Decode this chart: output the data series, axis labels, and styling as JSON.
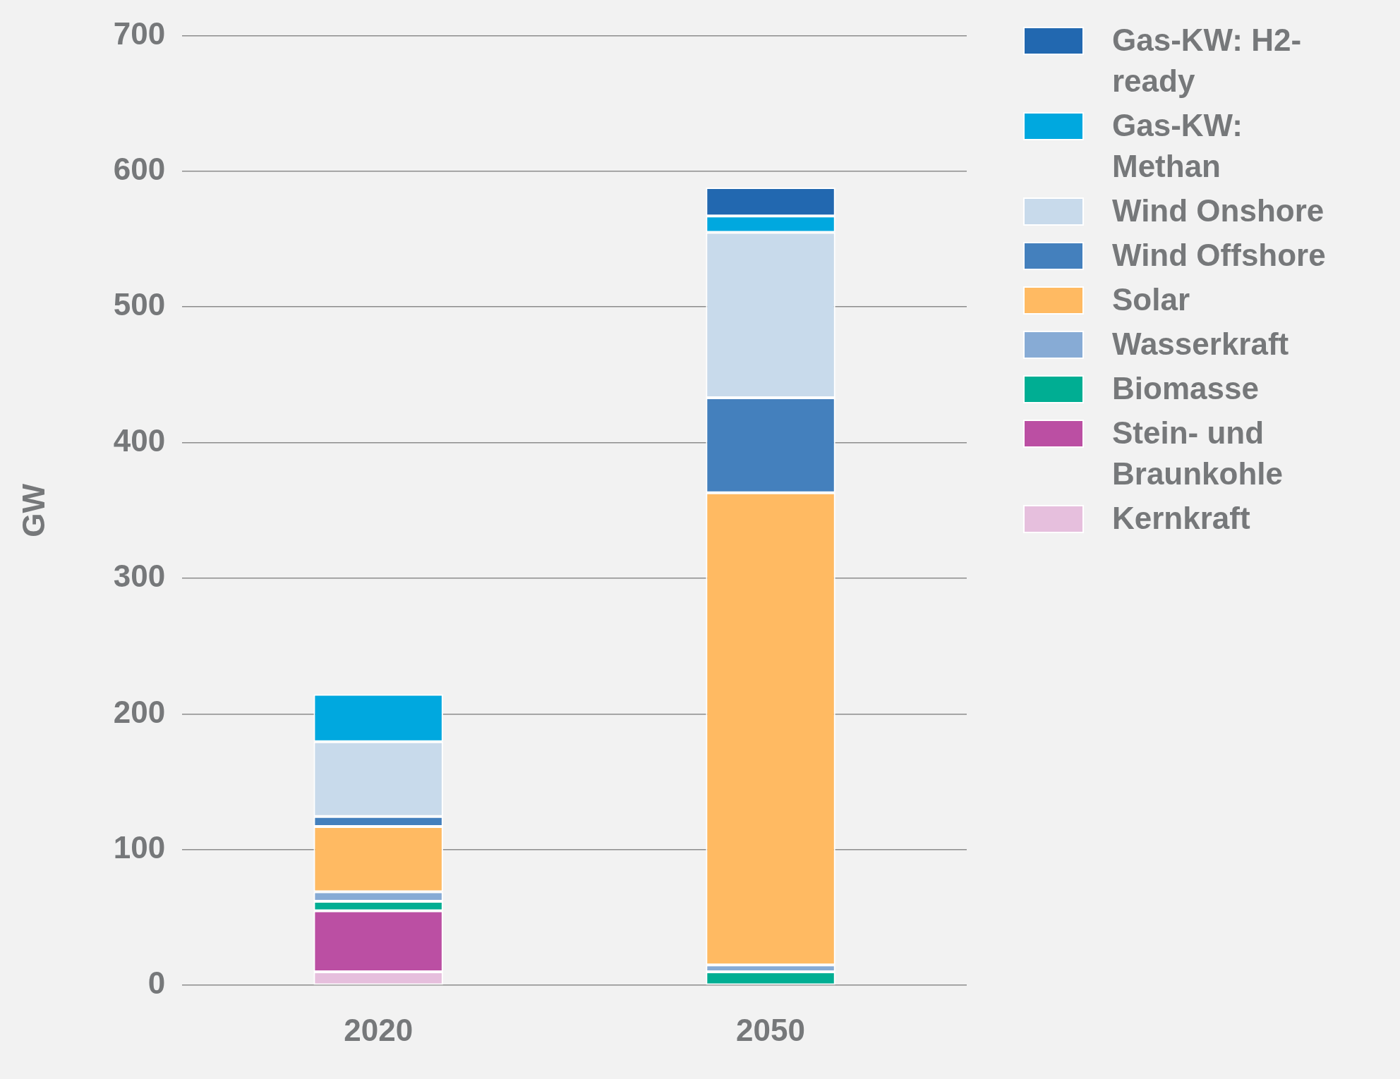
{
  "chart_data": {
    "type": "bar",
    "stacked": true,
    "ylabel": "GW",
    "categories": [
      "2020",
      "2050"
    ],
    "series": [
      {
        "name": "Kernkraft",
        "color": "#e6bfdd",
        "values": [
          10,
          0
        ]
      },
      {
        "name": "Stein- und Braunkohle",
        "color": "#bb4fa3",
        "values": [
          45,
          0
        ]
      },
      {
        "name": "Biomasse",
        "color": "#00ae93",
        "values": [
          7,
          10
        ]
      },
      {
        "name": "Wasserkraft",
        "color": "#87abd5",
        "values": [
          7,
          5
        ]
      },
      {
        "name": "Solar",
        "color": "#ffba62",
        "values": [
          48,
          348
        ]
      },
      {
        "name": "Wind Offshore",
        "color": "#4480bd",
        "values": [
          7.5,
          70
        ]
      },
      {
        "name": "Wind Onshore",
        "color": "#c8daeb",
        "values": [
          55,
          122
        ]
      },
      {
        "name": "Gas-KW: Methan",
        "color": "#00a8df",
        "values": [
          35,
          12
        ]
      },
      {
        "name": "Gas-KW: H2-ready",
        "color": "#2268b0",
        "values": [
          0,
          21
        ]
      }
    ],
    "ylim": [
      0,
      700
    ],
    "yticks": [
      0,
      100,
      200,
      300,
      400,
      500,
      600,
      700
    ],
    "grid": "y",
    "legend": "right"
  }
}
